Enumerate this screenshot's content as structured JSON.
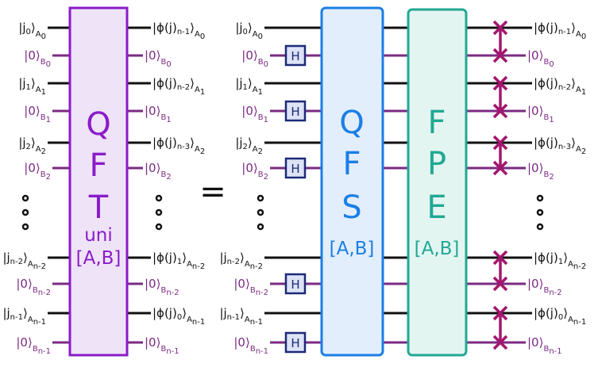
{
  "colors": {
    "wire_a": "#111111",
    "wire_b": "#7a2a82",
    "qft_fill": "#efe3f8",
    "qft_stroke": "#8a1cc8",
    "qft_text": "#8a1cc8",
    "qfs_fill": "#e3eefc",
    "qfs_stroke": "#1a7fe6",
    "qfs_text": "#1a7fe6",
    "fpe_fill": "#e3f5f1",
    "fpe_stroke": "#20a894",
    "fpe_text": "#20a894",
    "h_fill": "#dde3f5",
    "h_stroke": "#1c2a78",
    "swap": "#a3166e"
  },
  "left": {
    "inputs": [
      {
        "main": "|j",
        "sub": "0",
        "tail": "⟩",
        "reg": "A",
        "regsub": "0"
      },
      {
        "main": "|0⟩",
        "sub": "",
        "tail": "",
        "reg": "B",
        "regsub": "0"
      },
      {
        "main": "|j",
        "sub": "1",
        "tail": "⟩",
        "reg": "A",
        "regsub": "1"
      },
      {
        "main": "|0⟩",
        "sub": "",
        "tail": "",
        "reg": "B",
        "regsub": "1"
      },
      {
        "main": "|j",
        "sub": "2",
        "tail": "⟩",
        "reg": "A",
        "regsub": "2"
      },
      {
        "main": "|0⟩",
        "sub": "",
        "tail": "",
        "reg": "B",
        "regsub": "2"
      },
      {
        "main": "|j",
        "sub": "n-2",
        "tail": "⟩",
        "reg": "A",
        "regsub": "n-2"
      },
      {
        "main": "|0⟩",
        "sub": "",
        "tail": "",
        "reg": "B",
        "regsub": "n-2"
      },
      {
        "main": "|j",
        "sub": "n-1",
        "tail": "⟩",
        "reg": "A",
        "regsub": "n-1"
      },
      {
        "main": "|0⟩",
        "sub": "",
        "tail": "",
        "reg": "B",
        "regsub": "n-1"
      }
    ],
    "outputs": [
      {
        "main": "|ϕ(j)",
        "sub": "n-1",
        "tail": "⟩",
        "reg": "A",
        "regsub": "0"
      },
      {
        "main": "|0⟩",
        "sub": "",
        "tail": "",
        "reg": "B",
        "regsub": "0"
      },
      {
        "main": "|ϕ(j)",
        "sub": "n-2",
        "tail": "⟩",
        "reg": "A",
        "regsub": "1"
      },
      {
        "main": "|0⟩",
        "sub": "",
        "tail": "",
        "reg": "B",
        "regsub": "1"
      },
      {
        "main": "|ϕ(j)",
        "sub": "n-3",
        "tail": "⟩",
        "reg": "A",
        "regsub": "2"
      },
      {
        "main": "|0⟩",
        "sub": "",
        "tail": "",
        "reg": "B",
        "regsub": "2"
      },
      {
        "main": "|ϕ(j)",
        "sub": "1",
        "tail": "⟩",
        "reg": "A",
        "regsub": "n-2"
      },
      {
        "main": "|0⟩",
        "sub": "",
        "tail": "",
        "reg": "B",
        "regsub": "n-2"
      },
      {
        "main": "|ϕ(j)",
        "sub": "0",
        "tail": "⟩",
        "reg": "A",
        "regsub": "n-1"
      },
      {
        "main": "|0⟩",
        "sub": "",
        "tail": "",
        "reg": "B",
        "regsub": "n-1"
      }
    ],
    "box": {
      "l1": "Q",
      "l2": "F",
      "l3": "T",
      "l4": "uni",
      "l5": "[A,B]"
    }
  },
  "equals": "=",
  "right": {
    "h_label": "H",
    "qfs": {
      "l1": "Q",
      "l2": "F",
      "l3": "S",
      "l4": "[A,B]"
    },
    "fpe": {
      "l1": "F",
      "l2": "P",
      "l3": "E",
      "l4": "[A,B]"
    }
  }
}
